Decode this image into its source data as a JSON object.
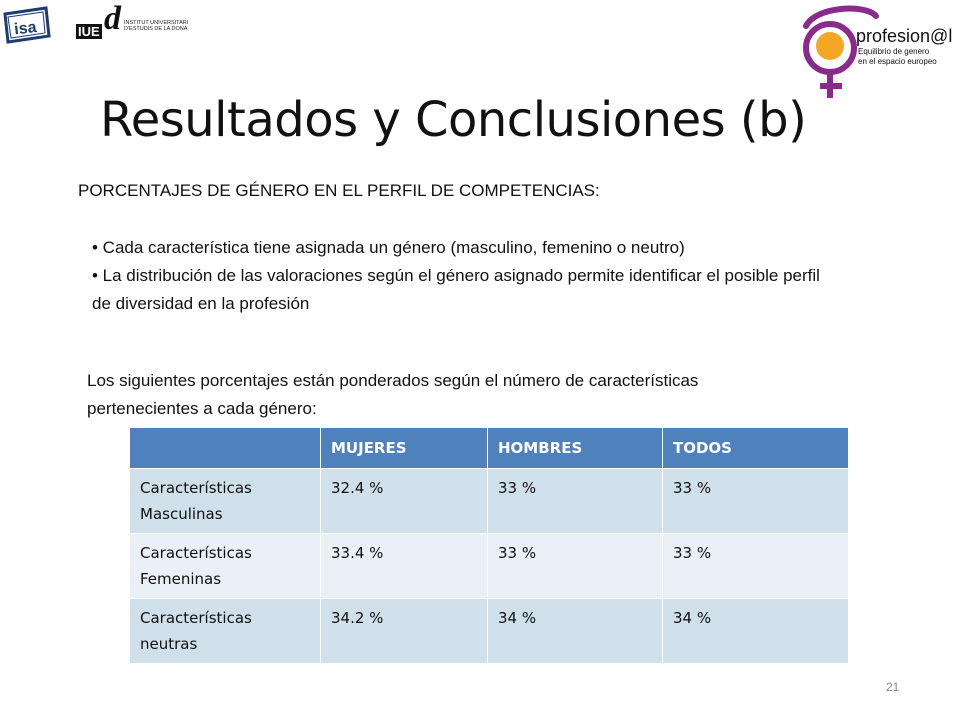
{
  "logos": {
    "isa": {
      "text": "isa"
    },
    "iue": {
      "short": "IUE",
      "letter": "d",
      "line1": "INSTITUT UNIVERSITARI",
      "line2": "D'ESTUDIS DE LA DONA"
    },
    "profesional": {
      "name": "profesion@l",
      "line1": "Equilibrio de genero",
      "line2": "en el espacio europeo",
      "accent": "#f5a623",
      "mark_color": "#8a2a8a"
    }
  },
  "slide": {
    "title": "Resultados y Conclusiones (b)",
    "subtitle": "PORCENTAJES DE GÉNERO EN EL PERFIL DE COMPETENCIAS:",
    "bullets": [
      "• Cada característica tiene asignada un género (masculino, femenino o neutro)",
      "• La distribución de las valoraciones según el género asignado permite identificar el posible perfil de diversidad en la profesión"
    ],
    "note": "Los siguientes porcentajes están ponderados según el número de características pertenecientes a cada género:",
    "page_number": "21"
  },
  "table": {
    "headers": [
      "",
      "MUJERES",
      "HOMBRES",
      "TODOS"
    ],
    "rows": [
      [
        "Características Masculinas",
        "32.4 %",
        "33 %",
        "33 %"
      ],
      [
        "Características Femeninas",
        "33.4 %",
        "33 %",
        "33 %"
      ],
      [
        "Características neutras",
        "34.2 %",
        "34 %",
        "34 %"
      ]
    ],
    "colors": {
      "header": "#4f81bd",
      "row_dark": "#d0e0ea",
      "row_light": "#e9f0f6"
    }
  }
}
